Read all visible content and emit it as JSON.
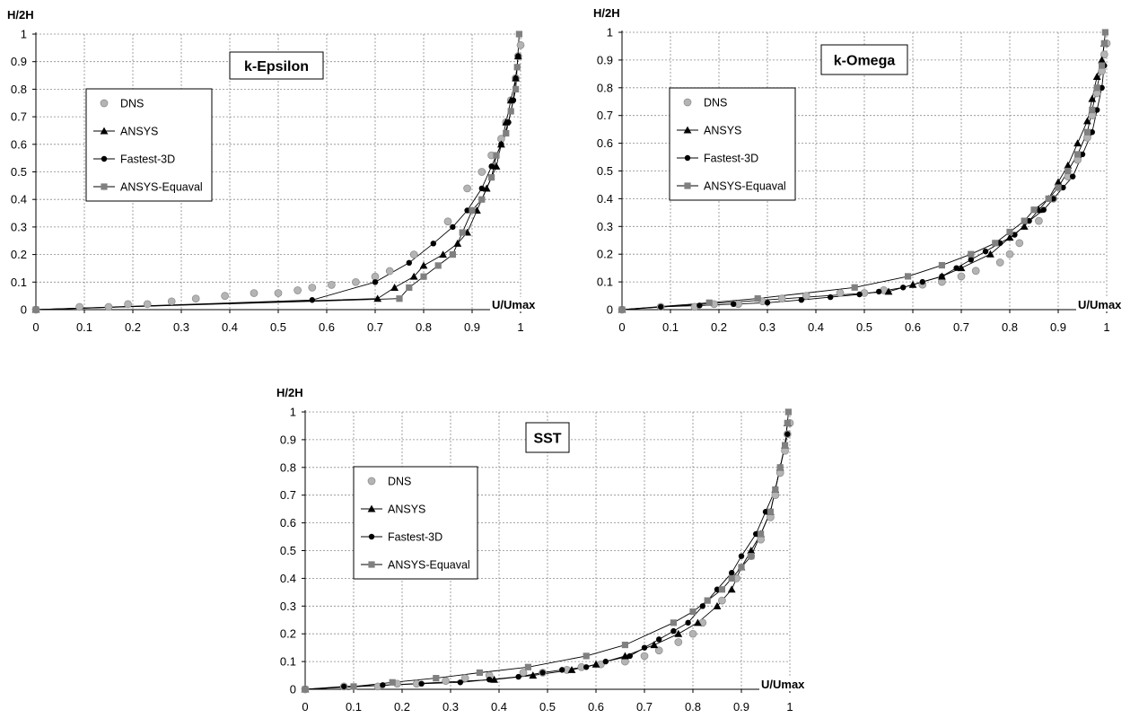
{
  "chart_data": [
    {
      "type": "scatter",
      "title": "k-Epsilon",
      "xlabel": "U/Umax",
      "ylabel": "H/2H",
      "xlim": [
        0,
        1
      ],
      "ylim": [
        0,
        1
      ],
      "xticks": [
        "0",
        "0.1",
        "0.2",
        "0.3",
        "0.4",
        "0.5",
        "0.6",
        "0.7",
        "0.8",
        "0.9",
        "1"
      ],
      "yticks": [
        "0",
        "0.1",
        "0.2",
        "0.3",
        "0.4",
        "0.5",
        "0.6",
        "0.7",
        "0.8",
        "0.9",
        "1"
      ],
      "grid": true,
      "legend": "upper-left",
      "series": [
        {
          "name": "DNS",
          "marker": "circle",
          "color": "#b4b4b4",
          "line": false,
          "x": [
            0,
            0.09,
            0.15,
            0.19,
            0.23,
            0.28,
            0.33,
            0.39,
            0.45,
            0.5,
            0.54,
            0.57,
            0.61,
            0.66,
            0.7,
            0.73,
            0.78,
            0.85,
            0.89,
            0.92,
            0.94,
            0.96,
            0.97,
            0.98,
            0.99,
            0.995,
            1.0
          ],
          "y": [
            0,
            0.01,
            0.01,
            0.02,
            0.02,
            0.03,
            0.04,
            0.05,
            0.06,
            0.06,
            0.07,
            0.08,
            0.09,
            0.1,
            0.12,
            0.14,
            0.2,
            0.32,
            0.44,
            0.5,
            0.56,
            0.62,
            0.68,
            0.76,
            0.84,
            0.92,
            0.96
          ]
        },
        {
          "name": "ANSYS",
          "marker": "triangle",
          "color": "#000000",
          "line": true,
          "x": [
            0,
            0.705,
            0.74,
            0.78,
            0.8,
            0.84,
            0.87,
            0.89,
            0.91,
            0.93,
            0.95,
            0.96,
            0.97,
            0.98,
            0.99,
            0.995
          ],
          "y": [
            0,
            0.04,
            0.08,
            0.12,
            0.16,
            0.2,
            0.24,
            0.28,
            0.36,
            0.44,
            0.52,
            0.6,
            0.68,
            0.76,
            0.84,
            0.92
          ]
        },
        {
          "name": "Fastest-3D",
          "marker": "dot",
          "color": "#000000",
          "line": true,
          "x": [
            0,
            0.57,
            0.7,
            0.77,
            0.82,
            0.86,
            0.89,
            0.92,
            0.94,
            0.96,
            0.975,
            0.985,
            0.99,
            0.995
          ],
          "y": [
            0,
            0.035,
            0.1,
            0.17,
            0.24,
            0.3,
            0.36,
            0.44,
            0.52,
            0.6,
            0.68,
            0.76,
            0.84,
            0.92
          ]
        },
        {
          "name": "ANSYS-Equaval",
          "marker": "square",
          "color": "#808080",
          "line": true,
          "x": [
            0,
            0.75,
            0.77,
            0.8,
            0.83,
            0.86,
            0.88,
            0.9,
            0.92,
            0.94,
            0.95,
            0.97,
            0.98,
            0.99,
            0.993,
            0.997
          ],
          "y": [
            0,
            0.04,
            0.08,
            0.12,
            0.16,
            0.2,
            0.28,
            0.36,
            0.4,
            0.48,
            0.56,
            0.64,
            0.72,
            0.8,
            0.88,
            1.0
          ]
        }
      ]
    },
    {
      "type": "scatter",
      "title": "k-Omega",
      "xlabel": "U/Umax",
      "ylabel": "H/2H",
      "xlim": [
        0,
        1
      ],
      "ylim": [
        0,
        1
      ],
      "xticks": [
        "0",
        "0.1",
        "0.2",
        "0.3",
        "0.4",
        "0.5",
        "0.6",
        "0.7",
        "0.8",
        "0.9",
        "1"
      ],
      "yticks": [
        "0",
        "0.1",
        "0.2",
        "0.3",
        "0.4",
        "0.5",
        "0.6",
        "0.7",
        "0.8",
        "0.9",
        "1"
      ],
      "grid": true,
      "legend": "upper-left",
      "series": [
        {
          "name": "DNS",
          "marker": "circle",
          "color": "#b4b4b4",
          "line": false,
          "x": [
            0,
            0.08,
            0.15,
            0.19,
            0.24,
            0.29,
            0.33,
            0.38,
            0.45,
            0.5,
            0.54,
            0.62,
            0.66,
            0.7,
            0.73,
            0.78,
            0.8,
            0.82,
            0.86,
            0.89,
            0.92,
            0.94,
            0.96,
            0.97,
            0.98,
            0.99,
            0.995,
            1.0
          ],
          "y": [
            0,
            0.01,
            0.01,
            0.02,
            0.02,
            0.03,
            0.04,
            0.05,
            0.06,
            0.06,
            0.07,
            0.09,
            0.1,
            0.12,
            0.14,
            0.17,
            0.2,
            0.24,
            0.32,
            0.4,
            0.48,
            0.54,
            0.62,
            0.7,
            0.78,
            0.86,
            0.92,
            0.96
          ]
        },
        {
          "name": "ANSYS",
          "marker": "triangle",
          "color": "#000000",
          "line": true,
          "x": [
            0,
            0.55,
            0.6,
            0.66,
            0.7,
            0.76,
            0.8,
            0.83,
            0.86,
            0.88,
            0.9,
            0.92,
            0.94,
            0.96,
            0.97,
            0.98,
            0.99,
            0.995
          ],
          "y": [
            0,
            0.065,
            0.09,
            0.12,
            0.15,
            0.2,
            0.26,
            0.3,
            0.36,
            0.4,
            0.46,
            0.52,
            0.6,
            0.68,
            0.76,
            0.84,
            0.9,
            0.96
          ]
        },
        {
          "name": "Fastest-3D",
          "marker": "dot",
          "color": "#000000",
          "line": true,
          "x": [
            0,
            0.08,
            0.16,
            0.23,
            0.3,
            0.37,
            0.43,
            0.49,
            0.53,
            0.58,
            0.62,
            0.66,
            0.69,
            0.72,
            0.75,
            0.78,
            0.81,
            0.84,
            0.87,
            0.89,
            0.91,
            0.93,
            0.95,
            0.97,
            0.98,
            0.99,
            0.995
          ],
          "y": [
            0,
            0.01,
            0.015,
            0.02,
            0.025,
            0.035,
            0.045,
            0.055,
            0.065,
            0.08,
            0.1,
            0.12,
            0.15,
            0.18,
            0.21,
            0.24,
            0.27,
            0.32,
            0.36,
            0.4,
            0.44,
            0.48,
            0.56,
            0.64,
            0.72,
            0.8,
            0.88
          ]
        },
        {
          "name": "ANSYS-Equaval",
          "marker": "square",
          "color": "#808080",
          "line": true,
          "x": [
            0,
            0.18,
            0.28,
            0.48,
            0.59,
            0.66,
            0.72,
            0.77,
            0.8,
            0.83,
            0.85,
            0.88,
            0.9,
            0.92,
            0.94,
            0.96,
            0.97,
            0.98,
            0.99,
            0.995,
            0.997
          ],
          "y": [
            0,
            0.025,
            0.04,
            0.08,
            0.12,
            0.16,
            0.2,
            0.24,
            0.28,
            0.32,
            0.36,
            0.4,
            0.44,
            0.5,
            0.56,
            0.64,
            0.72,
            0.8,
            0.88,
            0.96,
            1.0
          ]
        }
      ]
    },
    {
      "type": "scatter",
      "title": "SST",
      "xlabel": "U/Umax",
      "ylabel": "H/2H",
      "xlim": [
        0,
        1
      ],
      "ylim": [
        0,
        1
      ],
      "xticks": [
        "0",
        "0.1",
        "0.2",
        "0.3",
        "0.4",
        "0.5",
        "0.6",
        "0.7",
        "0.8",
        "0.9",
        "1"
      ],
      "yticks": [
        "0",
        "0.1",
        "0.2",
        "0.3",
        "0.4",
        "0.5",
        "0.6",
        "0.7",
        "0.8",
        "0.9",
        "1"
      ],
      "grid": true,
      "legend": "upper-left",
      "series": [
        {
          "name": "DNS",
          "marker": "circle",
          "color": "#b4b4b4",
          "line": false,
          "x": [
            0,
            0.08,
            0.15,
            0.19,
            0.23,
            0.29,
            0.33,
            0.38,
            0.45,
            0.49,
            0.54,
            0.57,
            0.61,
            0.66,
            0.7,
            0.73,
            0.77,
            0.8,
            0.82,
            0.86,
            0.89,
            0.92,
            0.94,
            0.96,
            0.97,
            0.98,
            0.99,
            0.995,
            1.0
          ],
          "y": [
            0,
            0.01,
            0.01,
            0.02,
            0.02,
            0.03,
            0.04,
            0.05,
            0.06,
            0.06,
            0.07,
            0.08,
            0.09,
            0.1,
            0.12,
            0.14,
            0.17,
            0.2,
            0.24,
            0.32,
            0.4,
            0.48,
            0.54,
            0.62,
            0.7,
            0.78,
            0.86,
            0.92,
            0.96
          ]
        },
        {
          "name": "ANSYS",
          "marker": "triangle",
          "color": "#000000",
          "line": true,
          "x": [
            0,
            0.39,
            0.47,
            0.55,
            0.6,
            0.66,
            0.72,
            0.77,
            0.81,
            0.85,
            0.88,
            0.9,
            0.92,
            0.94,
            0.96,
            0.97,
            0.98,
            0.99,
            0.995
          ],
          "y": [
            0,
            0.035,
            0.05,
            0.07,
            0.09,
            0.12,
            0.16,
            0.2,
            0.24,
            0.3,
            0.36,
            0.44,
            0.5,
            0.56,
            0.64,
            0.72,
            0.8,
            0.88,
            0.96
          ]
        },
        {
          "name": "Fastest-3D",
          "marker": "dot",
          "color": "#000000",
          "line": true,
          "x": [
            0,
            0.08,
            0.16,
            0.24,
            0.32,
            0.38,
            0.44,
            0.49,
            0.53,
            0.58,
            0.62,
            0.67,
            0.7,
            0.73,
            0.76,
            0.79,
            0.82,
            0.85,
            0.88,
            0.9,
            0.93,
            0.95,
            0.97,
            0.98,
            0.99,
            0.995
          ],
          "y": [
            0,
            0.01,
            0.015,
            0.02,
            0.025,
            0.035,
            0.045,
            0.06,
            0.07,
            0.08,
            0.1,
            0.12,
            0.15,
            0.18,
            0.21,
            0.24,
            0.3,
            0.36,
            0.42,
            0.48,
            0.56,
            0.64,
            0.72,
            0.8,
            0.88,
            0.92
          ]
        },
        {
          "name": "ANSYS-Equaval",
          "marker": "square",
          "color": "#808080",
          "line": true,
          "x": [
            0,
            0.1,
            0.18,
            0.27,
            0.36,
            0.46,
            0.58,
            0.66,
            0.76,
            0.8,
            0.83,
            0.86,
            0.88,
            0.9,
            0.92,
            0.94,
            0.96,
            0.97,
            0.98,
            0.99,
            0.995,
            0.997
          ],
          "y": [
            0,
            0.01,
            0.025,
            0.04,
            0.06,
            0.08,
            0.12,
            0.16,
            0.24,
            0.28,
            0.32,
            0.36,
            0.4,
            0.44,
            0.48,
            0.56,
            0.64,
            0.72,
            0.8,
            0.88,
            0.96,
            1.0
          ]
        }
      ]
    }
  ]
}
